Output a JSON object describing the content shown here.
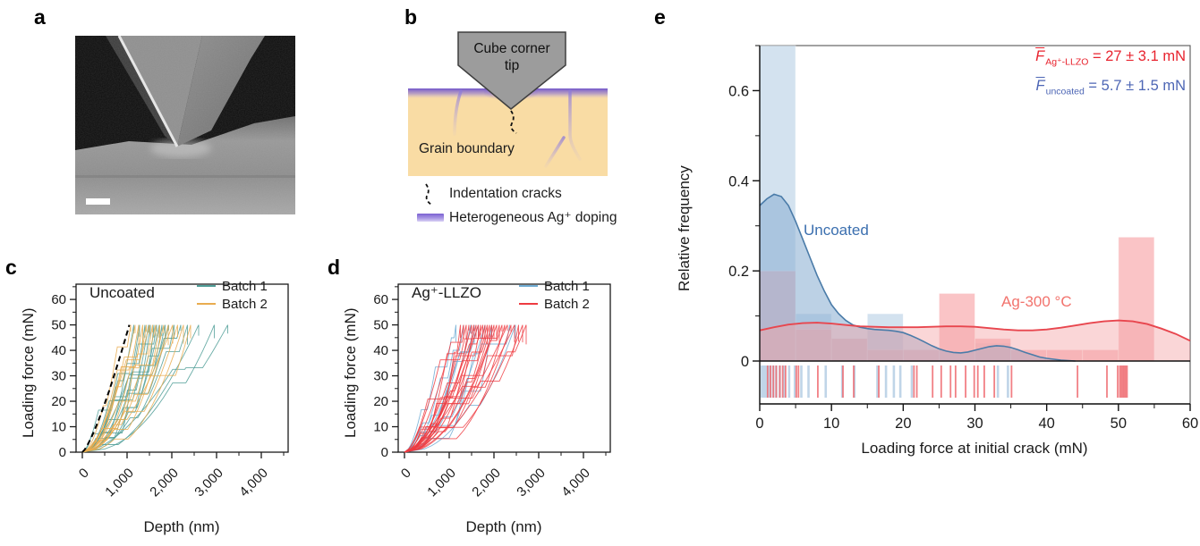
{
  "colors": {
    "teal": "#4F9D97",
    "orange": "#E9AC4F",
    "lblue": "#6FACD4",
    "red": "#EE3B41",
    "e_blue_bar": "#BDD3E7",
    "e_blue_kde_fill": "#8FB3D4",
    "e_blue_kde_line": "#4A7BA8",
    "e_red_bar": "#F9AEB1",
    "e_red_kde_fill": "#F4A3A6",
    "e_red_kde_line": "#E8464E",
    "uncoated_label": "#3B6FAF",
    "ag_label": "#F2736D",
    "annotation_red": "#E8232E",
    "annotation_blue": "#4D66B5",
    "material_tan": "#F9DCA4",
    "doping_purple": "#7A61D1",
    "tip_gray": "#9C9C9C"
  },
  "panel_a": {
    "label": "a"
  },
  "panel_b": {
    "label": "b",
    "tip_label_line1": "Cube corner",
    "tip_label_line2": "tip",
    "grain_boundary_label": "Grain boundary",
    "legend": [
      {
        "label": "Indentation cracks"
      },
      {
        "label": "Heterogeneous Ag⁺ doping"
      }
    ]
  },
  "panel_c": {
    "label": "c",
    "title": "Uncoated",
    "xlabel": "Depth (nm)",
    "ylabel": "Loading force (mN)",
    "legend": [
      {
        "label": "Batch 1"
      },
      {
        "label": "Batch 2"
      }
    ]
  },
  "panel_d": {
    "label": "d",
    "title": "Ag⁺-LLZO",
    "xlabel": "Depth (nm)",
    "ylabel": "Loading force (mN)",
    "legend": [
      {
        "label": "Batch 1"
      },
      {
        "label": "Batch 2"
      }
    ]
  },
  "panel_e": {
    "label": "e",
    "xlabel": "Loading force at initial crack (mN)",
    "ylabel": "Relative frequency",
    "series_labels": {
      "uncoated": "Uncoated",
      "ag": "Ag-300 °C"
    },
    "annotations": [
      {
        "symbol": "F",
        "subscript": "Ag⁺-LLZO",
        "text": " = 27 ± 3.1 mN"
      },
      {
        "symbol": "F",
        "subscript": "uncoated",
        "text": " = 5.7 ± 1.5 mN"
      }
    ]
  },
  "chart_data": [
    {
      "id": "c",
      "type": "line",
      "title": "Uncoated",
      "xlabel": "Depth (nm)",
      "ylabel": "Loading force (mN)",
      "xlim": [
        0,
        4600
      ],
      "ylim": [
        0,
        66
      ],
      "max_force": 50,
      "xticks_major": [
        0,
        1000,
        2000,
        3000,
        4000
      ],
      "xtick_labels": [
        "0",
        "1,000",
        "2,000",
        "3,000",
        "4,000"
      ],
      "xticks_minor": [
        500,
        1500,
        2500,
        3500,
        4500
      ],
      "yticks_major": [
        0,
        10,
        20,
        30,
        40,
        50,
        60
      ],
      "yticks_minor": [
        5,
        15,
        25,
        35,
        45,
        55,
        65
      ],
      "guide_line": {
        "style": "dashed",
        "depth_at_max": 1050,
        "exponent": 1.3
      },
      "series": [
        {
          "name": "Batch 1",
          "color_key": "teal",
          "end_depths": [
            1150,
            1280,
            1400,
            1480,
            1520,
            1600,
            1660,
            1720,
            1780,
            1850,
            1930,
            2050,
            2200,
            2350,
            2600,
            2950,
            3250
          ]
        },
        {
          "name": "Batch 2",
          "color_key": "orange",
          "end_depths": [
            1080,
            1180,
            1260,
            1350,
            1430,
            1500,
            1570,
            1640,
            1730,
            1820,
            1920,
            2020,
            2130,
            2260,
            2420
          ]
        }
      ]
    },
    {
      "id": "d",
      "type": "line",
      "title": "Ag⁺-LLZO",
      "xlabel": "Depth (nm)",
      "ylabel": "Loading force (mN)",
      "xlim": [
        0,
        4600
      ],
      "ylim": [
        0,
        66
      ],
      "max_force": 50,
      "xticks_major": [
        0,
        1000,
        2000,
        3000,
        4000
      ],
      "xtick_labels": [
        "0",
        "1,000",
        "2,000",
        "3,000",
        "4,000"
      ],
      "xticks_minor": [
        500,
        1500,
        2500,
        3500,
        4500
      ],
      "yticks_major": [
        0,
        10,
        20,
        30,
        40,
        50,
        60
      ],
      "yticks_minor": [
        5,
        15,
        25,
        35,
        45,
        55,
        65
      ],
      "series": [
        {
          "name": "Batch 1",
          "color_key": "lblue",
          "end_depths": [
            1150,
            1320,
            1480,
            1560,
            1650,
            1800,
            1950,
            2350,
            2480
          ]
        },
        {
          "name": "Batch 2",
          "color_key": "red",
          "end_depths": [
            1250,
            1320,
            1380,
            1440,
            1500,
            1550,
            1600,
            1650,
            1700,
            1750,
            1800,
            1850,
            1900,
            1950,
            2000,
            2060,
            2120,
            2180,
            2240,
            2300,
            2380,
            2460,
            2550,
            2640,
            2720
          ]
        }
      ]
    },
    {
      "id": "e",
      "type": "histogram+kde+rug",
      "xlabel": "Loading force at initial crack (mN)",
      "ylabel": "Relative frequency",
      "xlim": [
        0,
        60
      ],
      "ylim": [
        0,
        0.7
      ],
      "bin_width": 5,
      "xticks_major": [
        0,
        10,
        20,
        30,
        40,
        50,
        60
      ],
      "xticks_minor": [
        5,
        15,
        25,
        35,
        45,
        55
      ],
      "yticks_major": [
        0,
        0.2,
        0.4,
        0.6
      ],
      "ytick_labels": [
        "0",
        "0.2",
        "0.4",
        "0.6"
      ],
      "yticks_minor": [
        0.1,
        0.3,
        0.5,
        0.7
      ],
      "series": [
        {
          "name": "Uncoated",
          "mean_mN": "5.7 ± 1.5",
          "bar_color_key": "e_blue_bar",
          "kde_fill_key": "e_blue_kde_fill",
          "kde_line_key": "e_blue_kde_line",
          "bar_starts": [
            0,
            5,
            10,
            15,
            30
          ],
          "bar_heights": [
            0.7,
            0.105,
            0.05,
            0.105,
            0.04
          ],
          "kde": [
            [
              0,
              0.345
            ],
            [
              1,
              0.36
            ],
            [
              2,
              0.37
            ],
            [
              3,
              0.365
            ],
            [
              4,
              0.345
            ],
            [
              5,
              0.31
            ],
            [
              6,
              0.27
            ],
            [
              7,
              0.23
            ],
            [
              8,
              0.19
            ],
            [
              9,
              0.155
            ],
            [
              10,
              0.125
            ],
            [
              11,
              0.105
            ],
            [
              12,
              0.09
            ],
            [
              13,
              0.08
            ],
            [
              14,
              0.075
            ],
            [
              15,
              0.072
            ],
            [
              16,
              0.07
            ],
            [
              17,
              0.069
            ],
            [
              18,
              0.068
            ],
            [
              19,
              0.066
            ],
            [
              20,
              0.063
            ],
            [
              21,
              0.057
            ],
            [
              22,
              0.05
            ],
            [
              23,
              0.042
            ],
            [
              24,
              0.034
            ],
            [
              25,
              0.027
            ],
            [
              26,
              0.022
            ],
            [
              27,
              0.019
            ],
            [
              28,
              0.018
            ],
            [
              29,
              0.02
            ],
            [
              30,
              0.024
            ],
            [
              31,
              0.028
            ],
            [
              32,
              0.032
            ],
            [
              33,
              0.034
            ],
            [
              34,
              0.033
            ],
            [
              35,
              0.03
            ],
            [
              36,
              0.025
            ],
            [
              37,
              0.019
            ],
            [
              38,
              0.014
            ],
            [
              39,
              0.009
            ],
            [
              40,
              0.006
            ],
            [
              41,
              0.004
            ],
            [
              42,
              0.002
            ],
            [
              43,
              0.001
            ],
            [
              44,
              0
            ]
          ],
          "rug": [
            0.3,
            0.6,
            0.9,
            1.2,
            1.5,
            1.9,
            2.3,
            2.8,
            3.4,
            4.1,
            4.9,
            5.8,
            6.8,
            9.2,
            11.5,
            13.2,
            16.4,
            17.6,
            18.7,
            19.6,
            21.2,
            33.2,
            34.6
          ]
        },
        {
          "name": "Ag-300 °C",
          "mean_mN": "27 ± 3.1",
          "bar_color_key": "e_red_bar",
          "kde_fill_key": "e_red_kde_fill",
          "kde_line_key": "e_red_kde_line",
          "bar_starts": [
            0,
            5,
            10,
            15,
            20,
            25,
            30,
            35,
            40,
            45,
            50
          ],
          "bar_heights": [
            0.2,
            0.07,
            0.05,
            0.025,
            0.025,
            0.15,
            0.05,
            0.025,
            0.025,
            0.025,
            0.275
          ],
          "kde": [
            [
              0,
              0.068
            ],
            [
              2,
              0.075
            ],
            [
              4,
              0.081
            ],
            [
              6,
              0.084
            ],
            [
              8,
              0.085
            ],
            [
              10,
              0.083
            ],
            [
              12,
              0.08
            ],
            [
              14,
              0.077
            ],
            [
              16,
              0.076
            ],
            [
              18,
              0.075
            ],
            [
              20,
              0.075
            ],
            [
              22,
              0.075
            ],
            [
              24,
              0.076
            ],
            [
              26,
              0.077
            ],
            [
              28,
              0.077
            ],
            [
              30,
              0.076
            ],
            [
              32,
              0.073
            ],
            [
              34,
              0.07
            ],
            [
              36,
              0.068
            ],
            [
              38,
              0.068
            ],
            [
              40,
              0.07
            ],
            [
              42,
              0.074
            ],
            [
              44,
              0.079
            ],
            [
              46,
              0.084
            ],
            [
              48,
              0.088
            ],
            [
              50,
              0.09
            ],
            [
              52,
              0.088
            ],
            [
              54,
              0.082
            ],
            [
              56,
              0.072
            ],
            [
              58,
              0.06
            ],
            [
              60,
              0.045
            ]
          ],
          "rug": [
            1.1,
            1.5,
            1.9,
            2.3,
            2.8,
            3.2,
            3.6,
            5.1,
            5.4,
            8.1,
            11.6,
            13.1,
            16.6,
            21.5,
            21.9,
            24.1,
            25.3,
            26.6,
            27.3,
            28.7,
            29.9,
            30.4,
            31.3,
            32.7,
            35.1,
            44.3,
            48.4,
            49.9,
            50.2,
            50.4,
            50.6,
            50.8,
            51.0,
            51.2
          ]
        }
      ]
    }
  ]
}
